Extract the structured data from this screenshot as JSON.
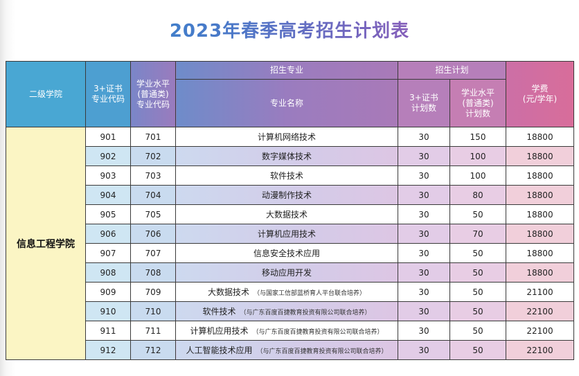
{
  "title": "2023年春季高考招生计划表",
  "headers": {
    "college": "二级学院",
    "code_cert": "3+证书\n专业代码",
    "code_level": "学业水平\n(普通类)\n专业代码",
    "major_group": "招生专业",
    "major_name": "专业名称",
    "plan_group": "招生计划",
    "plan_cert": "3+证书\n计划数",
    "plan_level": "学业水平\n(普通类)\n计划数",
    "fee": "学费\n(元/学年)"
  },
  "college_name": "信息工程学院",
  "rows": [
    {
      "code_cert": "901",
      "code_level": "701",
      "name": "计算机网络技术",
      "note": "",
      "plan_cert": "30",
      "plan_level": "150",
      "fee": "18800"
    },
    {
      "code_cert": "902",
      "code_level": "702",
      "name": "数字媒体技术",
      "note": "",
      "plan_cert": "30",
      "plan_level": "100",
      "fee": "18800"
    },
    {
      "code_cert": "903",
      "code_level": "703",
      "name": "软件技术",
      "note": "",
      "plan_cert": "30",
      "plan_level": "100",
      "fee": "18800"
    },
    {
      "code_cert": "904",
      "code_level": "704",
      "name": "动漫制作技术",
      "note": "",
      "plan_cert": "30",
      "plan_level": "80",
      "fee": "18800"
    },
    {
      "code_cert": "905",
      "code_level": "705",
      "name": "大数据技术",
      "note": "",
      "plan_cert": "30",
      "plan_level": "50",
      "fee": "18800"
    },
    {
      "code_cert": "906",
      "code_level": "706",
      "name": "计算机应用技术",
      "note": "",
      "plan_cert": "30",
      "plan_level": "70",
      "fee": "18800"
    },
    {
      "code_cert": "907",
      "code_level": "707",
      "name": "信息安全技术应用",
      "note": "",
      "plan_cert": "30",
      "plan_level": "50",
      "fee": "18800"
    },
    {
      "code_cert": "908",
      "code_level": "708",
      "name": "移动应用开发",
      "note": "",
      "plan_cert": "30",
      "plan_level": "50",
      "fee": "18800"
    },
    {
      "code_cert": "909",
      "code_level": "709",
      "name": "大数据技术",
      "note": "（与国家工信部蓝桥育人平台联合培养）",
      "plan_cert": "30",
      "plan_level": "50",
      "fee": "21100"
    },
    {
      "code_cert": "910",
      "code_level": "710",
      "name": "软件技术",
      "note": "（与广东百度百捷教育投资有限公司联合培养）",
      "plan_cert": "30",
      "plan_level": "50",
      "fee": "22100"
    },
    {
      "code_cert": "911",
      "code_level": "711",
      "name": "计算机应用技术",
      "note": "（与广东百度百捷教育投资有限公司联合培养）",
      "plan_cert": "30",
      "plan_level": "50",
      "fee": "22100"
    },
    {
      "code_cert": "912",
      "code_level": "712",
      "name": "人工智能技术应用",
      "note": "（与广东百度百捷教育投资有限公司联合培养）",
      "plan_cert": "30",
      "plan_level": "50",
      "fee": "22100"
    }
  ]
}
